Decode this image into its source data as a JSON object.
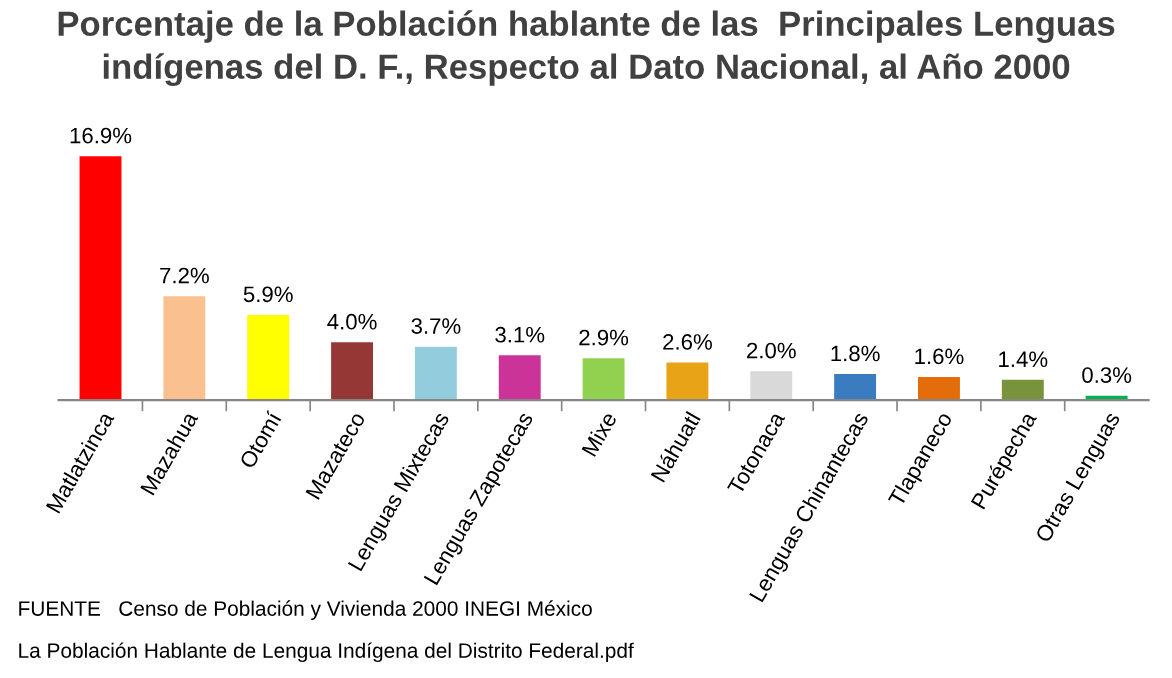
{
  "chart_data": {
    "type": "bar",
    "title": "Porcentaje de la Población hablante de las  Principales Lenguas\nindígenas del D. F., Respecto al Dato Nacional, al Año 2000",
    "categories": [
      "Matlatzinca",
      "Mazahua",
      "Otomí",
      "Mazateco",
      "Lenguas Mixtecas",
      "Lenguas Zapotecas",
      "Mixe",
      "Náhuatl",
      "Totonaca",
      "Lenguas Chinantecas",
      "Tlapaneco",
      "Purépecha",
      "Otras Lenguas"
    ],
    "values": [
      16.9,
      7.2,
      5.9,
      4.0,
      3.7,
      3.1,
      2.9,
      2.6,
      2.0,
      1.8,
      1.6,
      1.4,
      0.3
    ],
    "value_labels": [
      "16.9%",
      "7.2%",
      "5.9%",
      "4.0%",
      "3.7%",
      "3.1%",
      "2.9%",
      "2.6%",
      "2.0%",
      "1.8%",
      "1.6%",
      "1.4%",
      "0.3%"
    ],
    "colors": [
      "#ff0000",
      "#fac090",
      "#ffff00",
      "#953735",
      "#93cddd",
      "#cc3399",
      "#92d050",
      "#e8a317",
      "#d9d9d9",
      "#3b7cc0",
      "#e46c0a",
      "#77933c",
      "#00b050"
    ],
    "annotations": [
      "FUENTE   Censo de Población y Vivienda 2000 INEGI México",
      "La Población Hablante de Lengua Indígena del Distrito Federal.pdf"
    ],
    "grid": false,
    "legend": false
  }
}
